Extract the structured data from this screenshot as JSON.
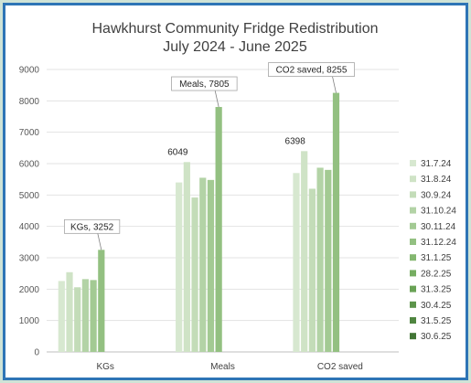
{
  "chart_data": {
    "type": "bar",
    "title": "Hawkhurst Community Fridge Redistribution",
    "subtitle": "July 2024 - June 2025",
    "categories": [
      "KGs",
      "Meals",
      "CO2 saved"
    ],
    "ylim": [
      0,
      9000
    ],
    "yticks": [
      0,
      1000,
      2000,
      3000,
      4000,
      5000,
      6000,
      7000,
      8000,
      9000
    ],
    "grid": true,
    "legend_position": "right",
    "series": [
      {
        "name": "31.7.24",
        "color": "#d7e8d0",
        "values": [
          2260,
          5400,
          5700
        ]
      },
      {
        "name": "31.8.24",
        "color": "#cfe3c6",
        "values": [
          2540,
          6049,
          6398
        ]
      },
      {
        "name": "30.9.24",
        "color": "#c3dcb8",
        "values": [
          2060,
          4920,
          5200
        ]
      },
      {
        "name": "31.10.24",
        "color": "#b3d3a6",
        "values": [
          2320,
          5550,
          5870
        ]
      },
      {
        "name": "30.11.24",
        "color": "#a3ca93",
        "values": [
          2290,
          5480,
          5800
        ]
      },
      {
        "name": "31.12.24",
        "color": "#93c081",
        "values": [
          3252,
          7805,
          8255
        ]
      },
      {
        "name": "31.1.25",
        "color": "#84b770",
        "values": [
          0,
          0,
          0
        ]
      },
      {
        "name": "28.2.25",
        "color": "#76ad61",
        "values": [
          0,
          0,
          0
        ]
      },
      {
        "name": "31.3.25",
        "color": "#69a255",
        "values": [
          0,
          0,
          0
        ]
      },
      {
        "name": "30.4.25",
        "color": "#5c944a",
        "values": [
          0,
          0,
          0
        ]
      },
      {
        "name": "31.5.25",
        "color": "#4f8540",
        "values": [
          0,
          0,
          0
        ]
      },
      {
        "name": "30.6.25",
        "color": "#427535",
        "values": [
          0,
          0,
          0
        ]
      }
    ],
    "data_labels": [
      {
        "text": "KGs, 3252",
        "category": 0,
        "series": 5,
        "callout": true
      },
      {
        "text": "6049",
        "category": 1,
        "series": 1,
        "callout": false
      },
      {
        "text": "Meals, 7805",
        "category": 1,
        "series": 5,
        "callout": true
      },
      {
        "text": "6398",
        "category": 2,
        "series": 1,
        "callout": false
      },
      {
        "text": "CO2 saved, 8255",
        "category": 2,
        "series": 5,
        "callout": true
      }
    ]
  }
}
